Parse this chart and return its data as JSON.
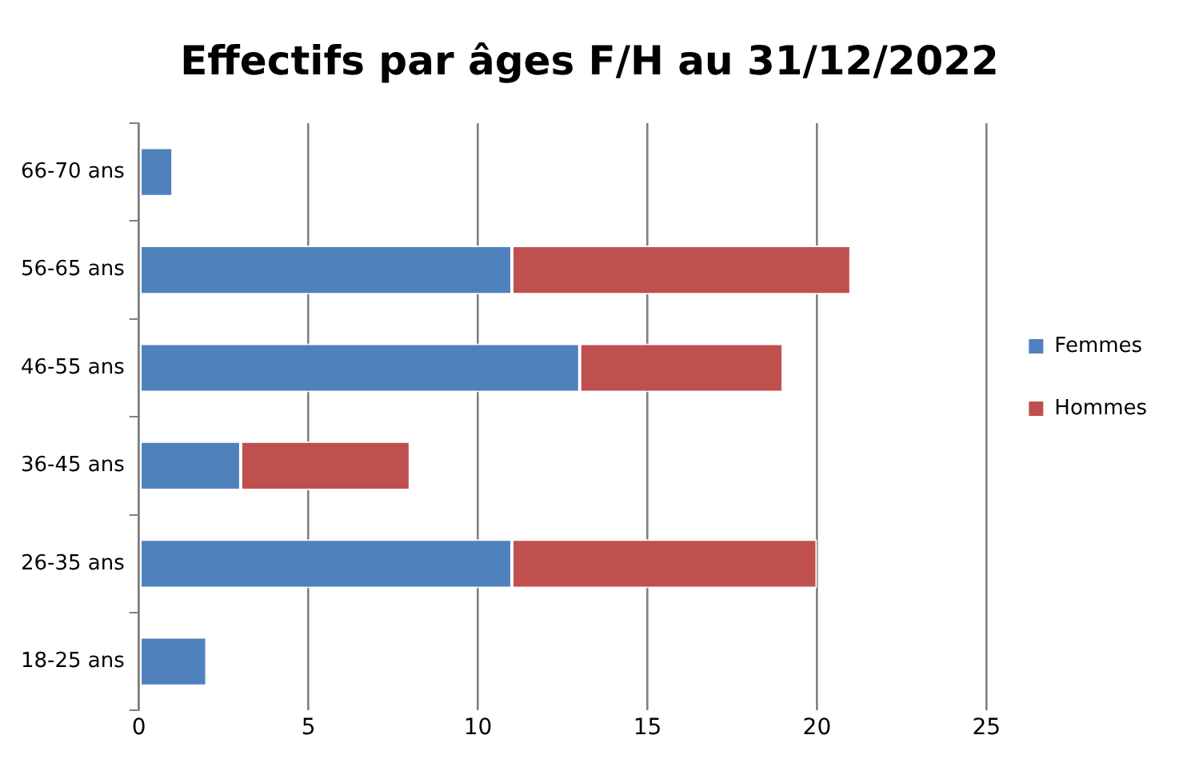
{
  "chart_data": {
    "type": "bar",
    "orientation": "horizontal",
    "stacked": true,
    "title": "Effectifs par âges F/H au 31/12/2022",
    "categories": [
      "66-70 ans",
      "56-65 ans",
      "46-55 ans",
      "36-45 ans",
      "26-35 ans",
      "18-25 ans"
    ],
    "series": [
      {
        "name": "Femmes",
        "color": "#4f81bd",
        "values": [
          1,
          11,
          13,
          3,
          11,
          2
        ]
      },
      {
        "name": "Hommes",
        "color": "#c0504d",
        "values": [
          0,
          10,
          6,
          5,
          9,
          0
        ]
      }
    ],
    "xlim": [
      0,
      25
    ],
    "xticks": [
      0,
      5,
      10,
      15,
      20,
      25
    ],
    "grid": "x",
    "legend": "right"
  }
}
